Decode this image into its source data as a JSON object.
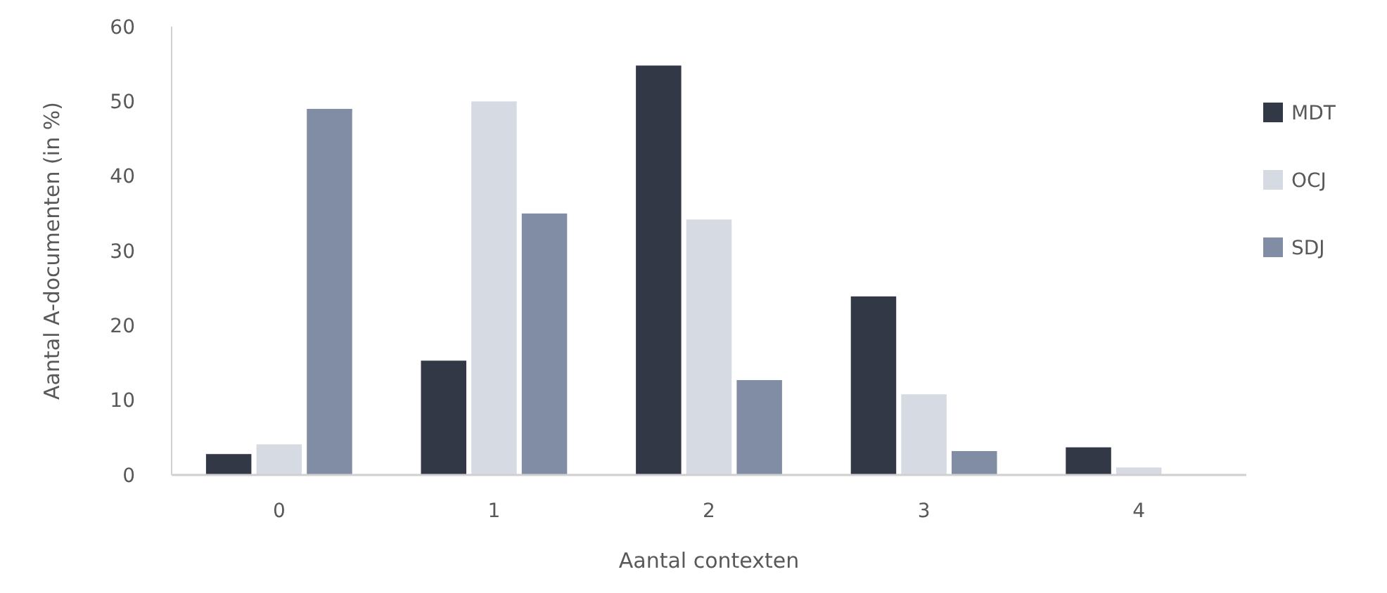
{
  "chart_data": {
    "type": "bar",
    "xlabel": "Aantal contexten",
    "ylabel": "Aantal A-documenten (in %)",
    "categories": [
      "0",
      "1",
      "2",
      "3",
      "4"
    ],
    "series": [
      {
        "name": "MDT",
        "color": "#323846",
        "values": [
          2.8,
          15.3,
          54.8,
          23.9,
          3.7
        ]
      },
      {
        "name": "OCJ",
        "color": "#d6dbe3",
        "values": [
          4.1,
          50,
          34.2,
          10.8,
          1
        ]
      },
      {
        "name": "SDJ",
        "color": "#808da4",
        "values": [
          49,
          35,
          12.7,
          3.2,
          0
        ]
      }
    ],
    "ylim": [
      0,
      60
    ],
    "yticks": [
      0,
      10,
      20,
      30,
      40,
      50,
      60
    ],
    "grid": false,
    "legend": "right"
  }
}
